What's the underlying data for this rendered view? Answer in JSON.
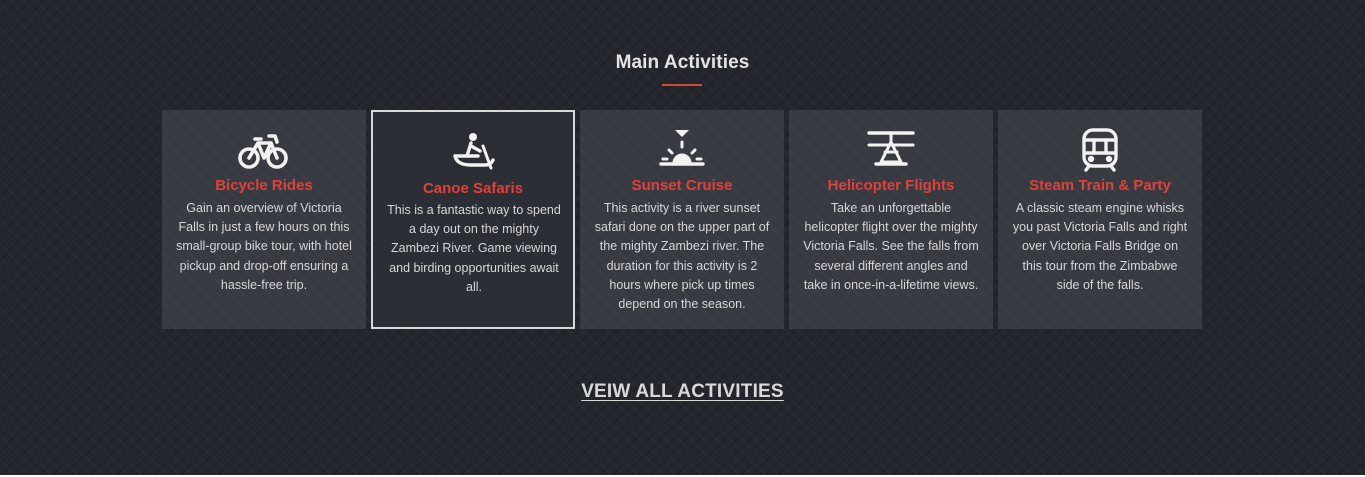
{
  "section": {
    "title": "Main Activities",
    "accent_color": "#d9443b",
    "view_all_label": "VEIW ALL ACTIVITIES"
  },
  "activities": [
    {
      "icon": "bicycle-icon",
      "title": "Bicycle Rides",
      "description": "Gain an overview of Victoria Falls in just a few hours on this small-group bike tour, with hotel pickup and drop-off ensuring a hassle-free trip."
    },
    {
      "icon": "canoe-icon",
      "title": "Canoe Safaris",
      "description": "This is a fantastic way to spend a day out on the mighty Zambezi River. Game viewing and birding opportunities await all."
    },
    {
      "icon": "sunset-icon",
      "title": "Sunset Cruise",
      "description": "This activity is a river sunset safari done on the upper part of the mighty Zambezi river. The duration for this activity is 2 hours where pick up times depend on the season."
    },
    {
      "icon": "helicopter-icon",
      "title": "Helicopter Flights",
      "description": "Take an unforgettable helicopter flight over the mighty Victoria Falls. See the falls from several different angles and take in once-in-a-lifetime views."
    },
    {
      "icon": "train-icon",
      "title": "Steam Train & Party",
      "description": "A classic steam engine whisks you past Victoria Falls and right over Victoria Falls Bridge on this tour from the Zimbabwe side of the falls."
    }
  ]
}
